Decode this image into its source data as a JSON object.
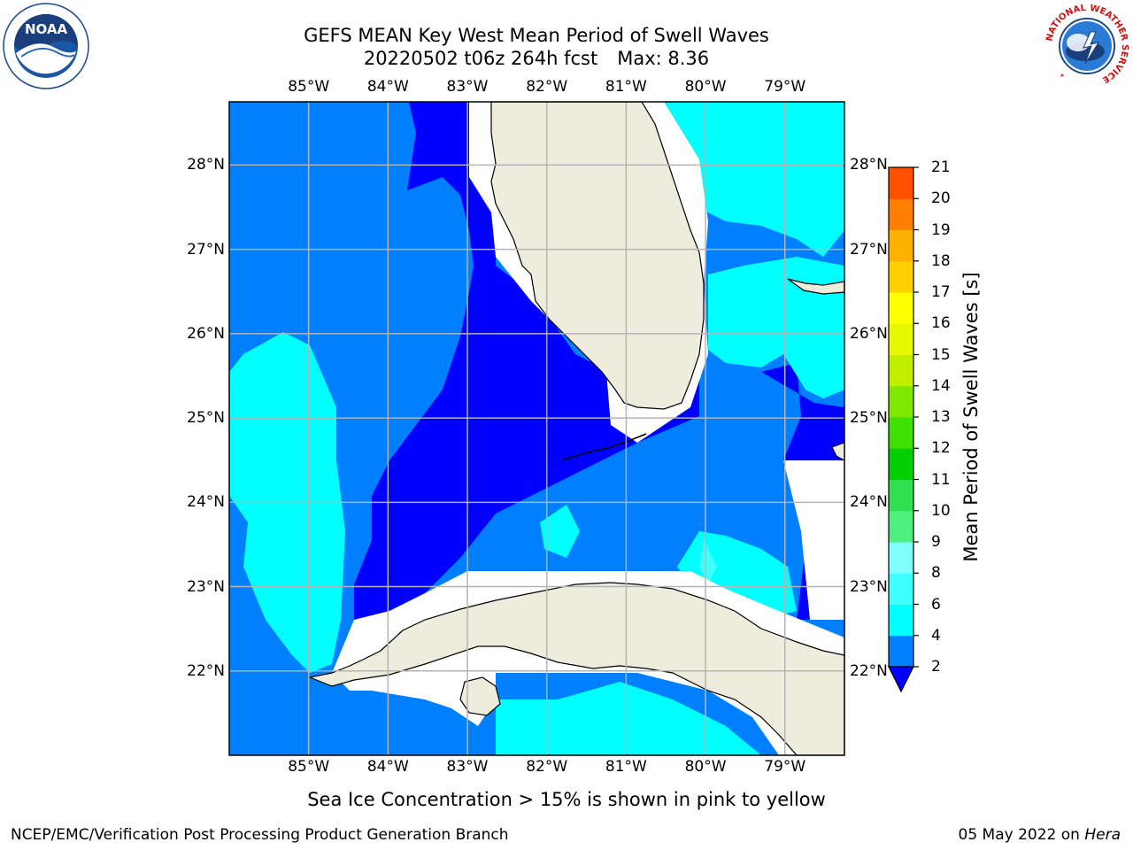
{
  "header": {
    "title_line1": "GEFS MEAN Key West Mean Period of Swell Waves",
    "title_date": "20220502 t06z 264h fcst",
    "title_max": "Max: 8.36"
  },
  "logos": {
    "left": {
      "icon": "noaa-logo-icon",
      "text": "NOAA",
      "ring_text": "NATIONAL OCEANIC AND ATMOSPHERIC ADMINISTRATION · U.S. DEPARTMENT OF COMMERCE"
    },
    "right": {
      "icon": "nws-logo-icon",
      "ring_text": "NATIONAL WEATHER SERVICE"
    }
  },
  "map": {
    "lon_labels": [
      "85°W",
      "84°W",
      "83°W",
      "82°W",
      "81°W",
      "80°W",
      "79°W"
    ],
    "lat_labels": [
      "28°N",
      "27°N",
      "26°N",
      "25°N",
      "24°N",
      "23°N",
      "22°N"
    ],
    "lon_values": [
      -85,
      -84,
      -83,
      -82,
      -81,
      -80,
      -79
    ],
    "lat_values": [
      28,
      27,
      26,
      25,
      24,
      23,
      22
    ],
    "extent": {
      "lon_min": -86.0,
      "lon_max": -78.25,
      "lat_min": 21.0,
      "lat_max": 28.75
    },
    "colors": {
      "land": "#eeecdc",
      "ocean_2_4": "#0080ff",
      "ocean_below_2": "#0000ff",
      "ocean_4_6": "#00ffff",
      "ocean_6_8": "#40ffff",
      "no_data": "#ffffff",
      "gridline": "#b4b4b4",
      "coastline": "#000000"
    }
  },
  "colorbar": {
    "label": "Mean Period of Swell Waves [s]",
    "tick_labels": [
      "2",
      "4",
      "6",
      "8",
      "9",
      "10",
      "11",
      "12",
      "13",
      "14",
      "15",
      "16",
      "17",
      "18",
      "19",
      "20",
      "21"
    ],
    "levels": [
      2,
      4,
      6,
      8,
      9,
      10,
      11,
      12,
      13,
      14,
      15,
      16,
      17,
      18,
      19,
      20,
      21
    ],
    "colors": [
      "#0080ff",
      "#00ffff",
      "#40ffff",
      "#80ffff",
      "#50f080",
      "#30e050",
      "#00d000",
      "#40e000",
      "#80e800",
      "#c0f000",
      "#e8f800",
      "#ffff00",
      "#ffd000",
      "#ffb000",
      "#ff8000",
      "#ff5000",
      "#ff2000",
      "#ff0000"
    ],
    "under_color": "#0000ff"
  },
  "caption": "Sea Ice Concentration > 15% is shown in pink to yellow",
  "footer": {
    "left": "NCEP/EMC/Verification Post Processing Product Generation Branch",
    "right_date": "05 May 2022 on",
    "right_host": "Hera"
  }
}
